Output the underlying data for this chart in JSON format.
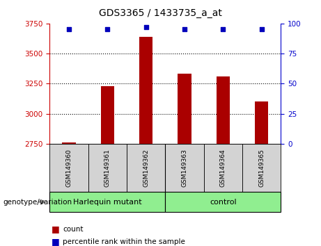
{
  "title": "GDS3365 / 1433735_a_at",
  "samples": [
    "GSM149360",
    "GSM149361",
    "GSM149362",
    "GSM149363",
    "GSM149364",
    "GSM149365"
  ],
  "counts": [
    2762,
    3230,
    3640,
    3330,
    3310,
    3105
  ],
  "percentiles": [
    95,
    95,
    97,
    95,
    95,
    95
  ],
  "ylim_left": [
    2750,
    3750
  ],
  "ylim_right": [
    0,
    100
  ],
  "yticks_left": [
    2750,
    3000,
    3250,
    3500,
    3750
  ],
  "yticks_right": [
    0,
    25,
    50,
    75,
    100
  ],
  "bar_color": "#AA0000",
  "dot_color": "#0000BB",
  "bar_width": 0.35,
  "plot_bg_color": "#ffffff",
  "left_axis_color": "#CC0000",
  "right_axis_color": "#0000CC",
  "genotype_label": "genotype/variation",
  "legend_count_label": "count",
  "legend_percentile_label": "percentile rank within the sample",
  "group1_label": "Harlequin mutant",
  "group2_label": "control",
  "group_color": "#90EE90",
  "sample_box_color": "#d3d3d3"
}
